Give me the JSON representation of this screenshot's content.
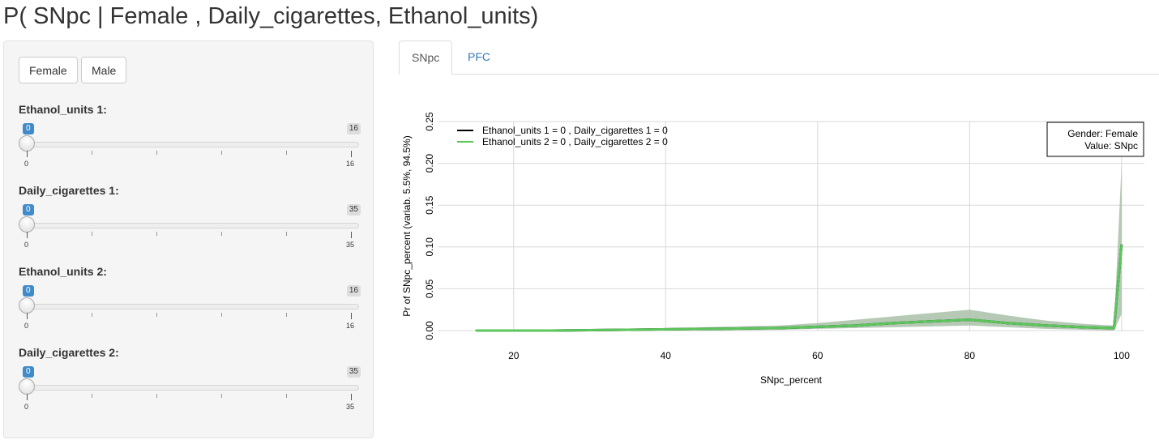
{
  "title": "P( SNpc | Female , Daily_cigarettes, Ethanol_units)",
  "gender_buttons": {
    "female": "Female",
    "male": "Male"
  },
  "sliders": [
    {
      "label": "Ethanol_units 1:",
      "value": "0",
      "min": "0",
      "max": "16"
    },
    {
      "label": "Daily_cigarettes 1:",
      "value": "0",
      "min": "0",
      "max": "35"
    },
    {
      "label": "Ethanol_units 2:",
      "value": "0",
      "min": "0",
      "max": "16"
    },
    {
      "label": "Daily_cigarettes 2:",
      "value": "0",
      "min": "0",
      "max": "35"
    }
  ],
  "tabs": [
    {
      "label": "SNpc",
      "active": true
    },
    {
      "label": "PFC",
      "active": false
    }
  ],
  "chart_data": {
    "type": "line",
    "xlabel": "SNpc_percent",
    "ylabel": "Pr of SNpc_percent  (variab. 5.5%, 94.5%)",
    "xlim": [
      10,
      103
    ],
    "ylim": [
      0,
      0.25
    ],
    "x_ticks": [
      20,
      40,
      60,
      80,
      100
    ],
    "y_ticks": [
      "0.00",
      "0.05",
      "0.10",
      "0.15",
      "0.20",
      "0.25"
    ],
    "grid": true,
    "legend_position": "top-left",
    "annotation": {
      "line1": "Gender:  Female",
      "line2": "Value:  SNpc"
    },
    "colors": {
      "series1": "#000000",
      "series2": "#5cc55c",
      "band": "#a8c0a8"
    },
    "series": [
      {
        "name": "Ethanol_units 1 = 0 , Daily_cigarettes 1 = 0",
        "color": "#000000",
        "x": [
          15,
          25,
          35,
          45,
          55,
          65,
          70,
          75,
          80,
          85,
          90,
          95,
          99,
          100
        ],
        "y": [
          0.0,
          0.0,
          0.001,
          0.002,
          0.003,
          0.006,
          0.009,
          0.011,
          0.013,
          0.009,
          0.006,
          0.004,
          0.003,
          0.103
        ]
      },
      {
        "name": "Ethanol_units 2 = 0 , Daily_cigarettes 2 = 0",
        "color": "#5cc55c",
        "x": [
          15,
          25,
          35,
          45,
          55,
          65,
          70,
          75,
          80,
          85,
          90,
          95,
          99,
          100
        ],
        "y": [
          0.0,
          0.0,
          0.001,
          0.002,
          0.003,
          0.006,
          0.009,
          0.011,
          0.013,
          0.009,
          0.006,
          0.004,
          0.003,
          0.103
        ]
      }
    ],
    "band": {
      "x": [
        15,
        25,
        35,
        45,
        55,
        60,
        65,
        70,
        75,
        80,
        85,
        90,
        95,
        99,
        100
      ],
      "lower": [
        0.0,
        0.0,
        0.0,
        0.0,
        0.001,
        0.002,
        0.003,
        0.004,
        0.005,
        0.006,
        0.004,
        0.002,
        0.001,
        0.0,
        0.02
      ],
      "upper": [
        0.0,
        0.001,
        0.002,
        0.004,
        0.006,
        0.009,
        0.013,
        0.017,
        0.021,
        0.025,
        0.018,
        0.012,
        0.008,
        0.006,
        0.2
      ]
    }
  }
}
